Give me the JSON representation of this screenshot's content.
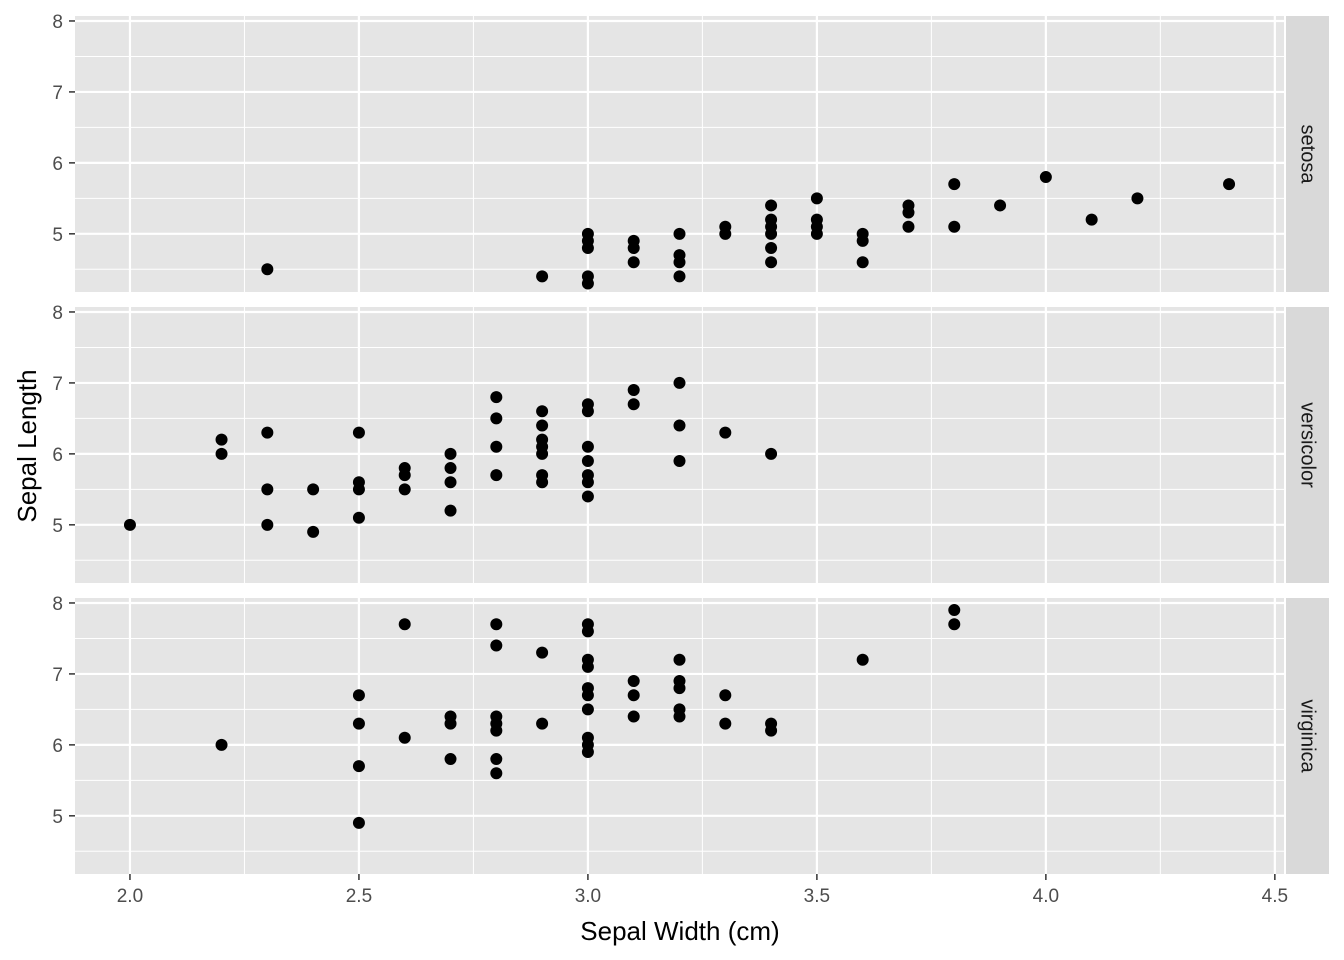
{
  "chart_data": {
    "type": "scatter",
    "xlabel": "Sepal Width (cm)",
    "ylabel": "Sepal Length",
    "xlim": [
      1.88,
      4.52
    ],
    "ylim": [
      4.18,
      8.07
    ],
    "x_ticks": [
      "2.0",
      "2.5",
      "3.0",
      "3.5",
      "4.0",
      "4.5"
    ],
    "x_tick_values": [
      2.0,
      2.5,
      3.0,
      3.5,
      4.0,
      4.5
    ],
    "y_ticks": [
      "5",
      "6",
      "7",
      "8"
    ],
    "y_tick_values": [
      5,
      6,
      7,
      8
    ],
    "grid": true,
    "facet_by": "species",
    "colors": {
      "panel_bg": "#e5e5e5",
      "grid": "#ffffff",
      "strip_bg": "#d9d9d9",
      "point": "#000000"
    },
    "panels": [
      {
        "name": "setosa",
        "points": [
          [
            2.3,
            4.5
          ],
          [
            2.9,
            4.4
          ],
          [
            3.0,
            5.0
          ],
          [
            3.0,
            4.9
          ],
          [
            3.0,
            4.8
          ],
          [
            3.0,
            4.4
          ],
          [
            3.0,
            4.3
          ],
          [
            3.1,
            4.9
          ],
          [
            3.1,
            4.8
          ],
          [
            3.1,
            4.6
          ],
          [
            3.2,
            5.0
          ],
          [
            3.2,
            4.7
          ],
          [
            3.2,
            4.6
          ],
          [
            3.2,
            4.4
          ],
          [
            3.3,
            5.1
          ],
          [
            3.3,
            5.0
          ],
          [
            3.4,
            5.4
          ],
          [
            3.4,
            5.2
          ],
          [
            3.4,
            5.1
          ],
          [
            3.4,
            5.0
          ],
          [
            3.4,
            4.8
          ],
          [
            3.4,
            4.6
          ],
          [
            3.5,
            5.5
          ],
          [
            3.5,
            5.2
          ],
          [
            3.5,
            5.1
          ],
          [
            3.5,
            5.0
          ],
          [
            3.6,
            5.0
          ],
          [
            3.6,
            4.9
          ],
          [
            3.6,
            4.6
          ],
          [
            3.7,
            5.4
          ],
          [
            3.7,
            5.3
          ],
          [
            3.7,
            5.1
          ],
          [
            3.8,
            5.7
          ],
          [
            3.8,
            5.1
          ],
          [
            3.9,
            5.4
          ],
          [
            4.0,
            5.8
          ],
          [
            4.1,
            5.2
          ],
          [
            4.2,
            5.5
          ],
          [
            4.4,
            5.7
          ]
        ]
      },
      {
        "name": "versicolor",
        "points": [
          [
            2.0,
            5.0
          ],
          [
            2.2,
            6.2
          ],
          [
            2.2,
            6.0
          ],
          [
            2.3,
            6.3
          ],
          [
            2.3,
            5.5
          ],
          [
            2.3,
            5.0
          ],
          [
            2.4,
            5.5
          ],
          [
            2.4,
            4.9
          ],
          [
            2.5,
            6.3
          ],
          [
            2.5,
            5.6
          ],
          [
            2.5,
            5.5
          ],
          [
            2.5,
            5.1
          ],
          [
            2.6,
            5.8
          ],
          [
            2.6,
            5.7
          ],
          [
            2.6,
            5.5
          ],
          [
            2.7,
            6.0
          ],
          [
            2.7,
            5.8
          ],
          [
            2.7,
            5.6
          ],
          [
            2.7,
            5.2
          ],
          [
            2.8,
            6.8
          ],
          [
            2.8,
            6.5
          ],
          [
            2.8,
            6.1
          ],
          [
            2.8,
            5.7
          ],
          [
            2.9,
            6.6
          ],
          [
            2.9,
            6.4
          ],
          [
            2.9,
            6.2
          ],
          [
            2.9,
            6.1
          ],
          [
            2.9,
            6.0
          ],
          [
            2.9,
            5.7
          ],
          [
            2.9,
            5.6
          ],
          [
            3.0,
            6.7
          ],
          [
            3.0,
            6.6
          ],
          [
            3.0,
            6.1
          ],
          [
            3.0,
            5.9
          ],
          [
            3.0,
            5.7
          ],
          [
            3.0,
            5.6
          ],
          [
            3.0,
            5.4
          ],
          [
            3.1,
            6.9
          ],
          [
            3.1,
            6.7
          ],
          [
            3.2,
            7.0
          ],
          [
            3.2,
            6.4
          ],
          [
            3.2,
            5.9
          ],
          [
            3.3,
            6.3
          ],
          [
            3.4,
            6.0
          ]
        ]
      },
      {
        "name": "virginica",
        "points": [
          [
            2.2,
            6.0
          ],
          [
            2.5,
            6.7
          ],
          [
            2.5,
            6.3
          ],
          [
            2.5,
            5.7
          ],
          [
            2.5,
            4.9
          ],
          [
            2.6,
            7.7
          ],
          [
            2.6,
            6.1
          ],
          [
            2.7,
            6.4
          ],
          [
            2.7,
            6.3
          ],
          [
            2.7,
            5.8
          ],
          [
            2.8,
            7.7
          ],
          [
            2.8,
            7.4
          ],
          [
            2.8,
            6.4
          ],
          [
            2.8,
            6.3
          ],
          [
            2.8,
            6.2
          ],
          [
            2.8,
            5.8
          ],
          [
            2.8,
            5.6
          ],
          [
            2.9,
            7.3
          ],
          [
            2.9,
            6.3
          ],
          [
            3.0,
            7.7
          ],
          [
            3.0,
            7.6
          ],
          [
            3.0,
            7.2
          ],
          [
            3.0,
            7.1
          ],
          [
            3.0,
            6.8
          ],
          [
            3.0,
            6.7
          ],
          [
            3.0,
            6.5
          ],
          [
            3.0,
            6.1
          ],
          [
            3.0,
            6.0
          ],
          [
            3.0,
            5.9
          ],
          [
            3.1,
            6.9
          ],
          [
            3.1,
            6.7
          ],
          [
            3.1,
            6.4
          ],
          [
            3.2,
            7.2
          ],
          [
            3.2,
            6.9
          ],
          [
            3.2,
            6.8
          ],
          [
            3.2,
            6.5
          ],
          [
            3.2,
            6.4
          ],
          [
            3.3,
            6.7
          ],
          [
            3.3,
            6.3
          ],
          [
            3.4,
            6.3
          ],
          [
            3.4,
            6.2
          ],
          [
            3.6,
            7.2
          ],
          [
            3.8,
            7.9
          ],
          [
            3.8,
            7.7
          ]
        ]
      }
    ]
  }
}
